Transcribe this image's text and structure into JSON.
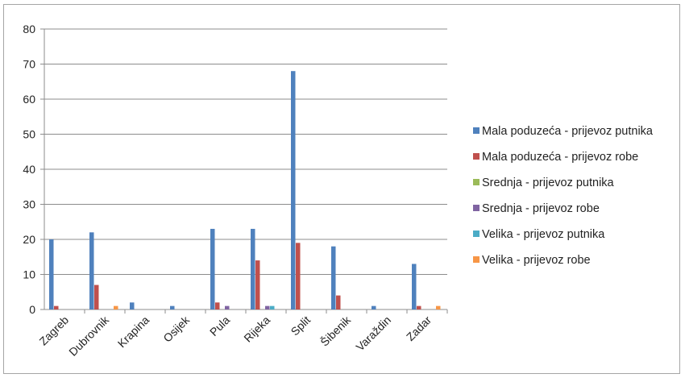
{
  "chart_data": {
    "type": "bar",
    "title": "",
    "xlabel": "",
    "ylabel": "",
    "ylim": [
      0,
      80
    ],
    "yticks": [
      0,
      10,
      20,
      30,
      40,
      50,
      60,
      70,
      80
    ],
    "grid": true,
    "legend_position": "right",
    "categories": [
      "Zagreb",
      "Dubrovnik",
      "Krapina",
      "Osijek",
      "Pula",
      "Rijeka",
      "Split",
      "Šibenik",
      "Varaždin",
      "Zadar"
    ],
    "series": [
      {
        "name": "Mala poduzeća  - prijevoz putnika",
        "color": "#4f81bd",
        "values": [
          20,
          22,
          2,
          1,
          23,
          23,
          68,
          18,
          1,
          13
        ]
      },
      {
        "name": "Mala poduzeća  - prijevoz robe",
        "color": "#c0504d",
        "values": [
          1,
          7,
          0,
          0,
          2,
          14,
          19,
          4,
          0,
          1
        ]
      },
      {
        "name": "Srednja  - prijevoz putnika",
        "color": "#9bbb59",
        "values": [
          0,
          0,
          0,
          0,
          0,
          0,
          0,
          0,
          0,
          0
        ]
      },
      {
        "name": "Srednja  - prijevoz robe",
        "color": "#8064a2",
        "values": [
          0,
          0,
          0,
          0,
          1,
          1,
          0,
          0,
          0,
          0
        ]
      },
      {
        "name": "Velika  - prijevoz putnika",
        "color": "#4bacc6",
        "values": [
          0,
          0,
          0,
          0,
          0,
          1,
          0,
          0,
          0,
          0
        ]
      },
      {
        "name": "Velika  - prijevoz robe",
        "color": "#f79646",
        "values": [
          0,
          1,
          0,
          0,
          0,
          0,
          0,
          0,
          0,
          1
        ]
      }
    ]
  }
}
